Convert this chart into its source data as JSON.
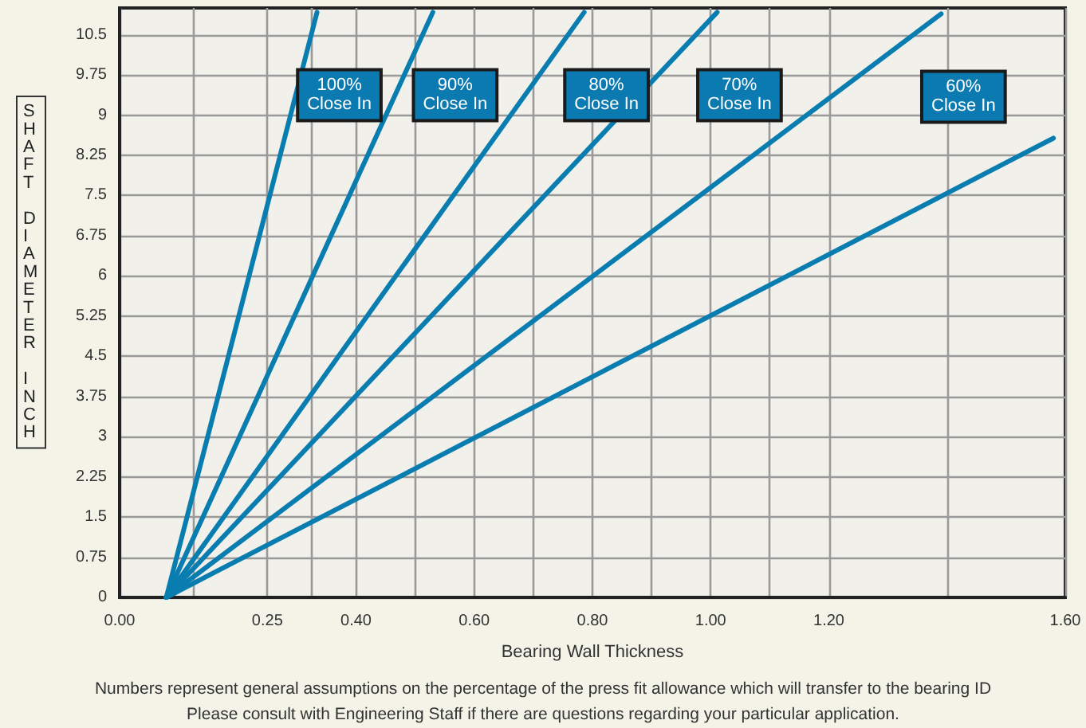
{
  "chart_data": {
    "type": "line",
    "xlabel": "Bearing Wall Thickness",
    "ylabel": "SHAFT DIAMETER INCH",
    "annotations": [
      "Numbers represent general assumptions on the percentage of the press fit allowance which will transfer to the bearing ID",
      "Please consult with Engineering Staff if there are questions regarding your particular application."
    ],
    "series": [
      {
        "name": "100%\nClose In",
        "color": "#0a7db0",
        "x": [
          0.079,
          0.334
        ],
        "values": [
          0,
          10.92
        ]
      },
      {
        "name": "90%\nClose In",
        "color": "#0a7db0",
        "x": [
          0.079,
          0.53
        ],
        "values": [
          0,
          10.92
        ]
      },
      {
        "name": "80%\nClose In",
        "color": "#0a7db0",
        "x": [
          0.079,
          0.786
        ],
        "values": [
          0,
          10.92
        ]
      },
      {
        "name": "70%\nClose In",
        "color": "#0a7db0",
        "x": [
          0.079,
          1.011
        ],
        "values": [
          0,
          10.92
        ]
      },
      {
        "name": "60%\nClose In",
        "color": "#0a7db0",
        "x": [
          0.079,
          1.39
        ],
        "values": [
          0,
          10.89
        ]
      },
      {
        "color": "#0a7db0",
        "x": [
          0.079,
          1.58
        ],
        "values": [
          0,
          8.57
        ]
      }
    ],
    "xlim": [
      0,
      1.6
    ],
    "xticks": [
      {
        "value": 0,
        "label": "0.00"
      },
      {
        "value": 0.125,
        "label": null
      },
      {
        "value": 0.25,
        "label": "0.25"
      },
      {
        "value": 0.325,
        "label": null
      },
      {
        "value": 0.4,
        "label": "0.40"
      },
      {
        "value": 0.5,
        "label": null
      },
      {
        "value": 0.6,
        "label": "0.60"
      },
      {
        "value": 0.7,
        "label": null
      },
      {
        "value": 0.8,
        "label": "0.80"
      },
      {
        "value": 0.9,
        "label": null
      },
      {
        "value": 1.0,
        "label": "1.00"
      },
      {
        "value": 1.1,
        "label": null
      },
      {
        "value": 1.2,
        "label": "1.20"
      },
      {
        "value": 1.4,
        "label": null
      },
      {
        "value": 1.6,
        "label": "1.60"
      }
    ],
    "ylim": [
      0,
      11
    ],
    "yticks": [
      0,
      0.75,
      1.5,
      2.25,
      3,
      3.75,
      4.5,
      5.25,
      6,
      6.75,
      7.5,
      8.25,
      9,
      9.75,
      10.5
    ],
    "grid": true,
    "legend": false,
    "marker": "none",
    "line_style": "solid"
  }
}
